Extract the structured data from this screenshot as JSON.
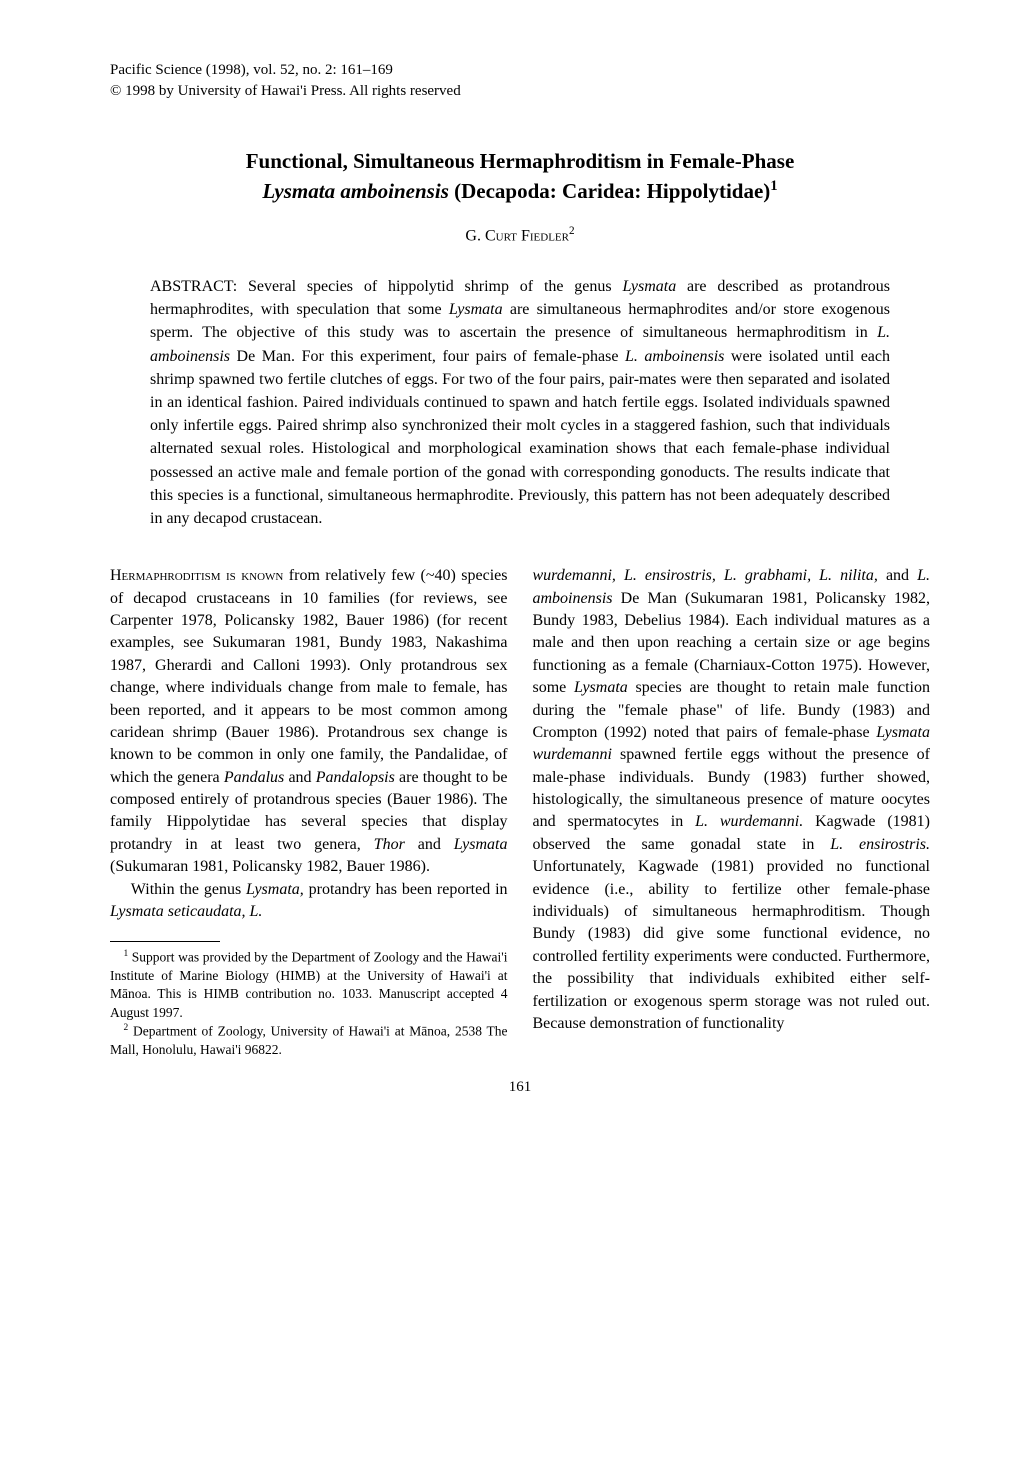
{
  "journal": {
    "line1": "Pacific Science (1998), vol. 52, no. 2: 161–169",
    "line2": "© 1998 by University of Hawai'i Press. All rights reserved"
  },
  "title": {
    "line1": "Functional, Simultaneous Hermaphroditism in Female-Phase",
    "line2_italic": "Lysmata amboinensis",
    "line2_rest": " (Decapoda: Caridea: Hippolytidae)",
    "super": "1"
  },
  "author": {
    "name": "G. Curt Fiedler",
    "super": "2"
  },
  "abstract": {
    "label": "ABSTRACT: ",
    "text_parts": [
      "Several species of hippolytid shrimp of the genus ",
      "Lysmata",
      " are described as protandrous hermaphrodites, with speculation that some ",
      "Lysmata",
      " are simultaneous hermaphrodites and/or store exogenous sperm. The objective of this study was to ascertain the presence of simultaneous hermaphroditism in ",
      "L. amboinensis",
      " De Man. For this experiment, four pairs of female-phase ",
      "L. amboinensis",
      " were isolated until each shrimp spawned two fertile clutches of eggs. For two of the four pairs, pair-mates were then separated and isolated in an identical fashion. Paired individuals continued to spawn and hatch fertile eggs. Isolated individuals spawned only infertile eggs. Paired shrimp also synchronized their molt cycles in a staggered fashion, such that individuals alternated sexual roles. Histological and morphological examination shows that each female-phase individual possessed an active male and female portion of the gonad with corresponding gonoducts. The results indicate that this species is a functional, simultaneous hermaphrodite. Previously, this pattern has not been adequately described in any decapod crustacean."
    ]
  },
  "left_col": {
    "p1_lead": "Hermaphroditism is known",
    "p1_rest": " from relatively few (~40) species of decapod crustaceans in 10 families (for reviews, see Carpenter 1978, Policansky 1982, Bauer 1986) (for recent examples, see Sukumaran 1981, Bundy 1983, Nakashima 1987, Gherardi and Calloni 1993). Only protandrous sex change, where individuals change from male to female, has been reported, and it appears to be most common among caridean shrimp (Bauer 1986). Protandrous sex change is known to be common in only one family, the Pandalidae, of which the genera ",
    "p1_it1": "Pandalus",
    "p1_mid1": " and ",
    "p1_it2": "Pandalopsis",
    "p1_mid2": " are thought to be composed entirely of protandrous species (Bauer 1986). The family Hippolytidae has several species that display protandry in at least two genera, ",
    "p1_it3": "Thor",
    "p1_mid3": " and ",
    "p1_it4": "Lysmata",
    "p1_end": " (Sukumaran 1981, Policansky 1982, Bauer 1986).",
    "p2_a": "Within the genus ",
    "p2_it1": "Lysmata,",
    "p2_b": " protandry has been reported in ",
    "p2_it2": "Lysmata seticaudata, L."
  },
  "right_col": {
    "p1_it1": "wurdemanni, L. ensirostris, L. grabhami, L. nilita,",
    "p1_a": " and ",
    "p1_it2": "L. amboinensis",
    "p1_b": " De Man (Sukumaran 1981, Policansky 1982, Bundy 1983, Debelius 1984). Each individual matures as a male and then upon reaching a certain size or age begins functioning as a female (Charniaux-Cotton 1975). However, some ",
    "p1_it3": "Lysmata",
    "p1_c": " species are thought to retain male function during the \"female phase\" of life. Bundy (1983) and Crompton (1992) noted that pairs of female-phase ",
    "p1_it4": "Lysmata wurdemanni",
    "p1_d": " spawned fertile eggs without the presence of male-phase individuals. Bundy (1983) further showed, histologically, the simultaneous presence of mature oocytes and spermatocytes in ",
    "p1_it5": "L. wurdemanni.",
    "p1_e": " Kagwade (1981) observed the same gonadal state in ",
    "p1_it6": "L. ensirostris.",
    "p1_f": " Unfortunately, Kagwade (1981) provided no functional evidence (i.e., ability to fertilize other female-phase individuals) of simultaneous hermaphroditism. Though Bundy (1983) did give some functional evidence, no controlled fertility experiments were conducted. Furthermore, the possibility that individuals exhibited either self-fertilization or exogenous sperm storage was not ruled out. Because demonstration of functionality"
  },
  "footnotes": {
    "f1_sup": "1",
    "f1": " Support was provided by the Department of Zoology and the Hawai'i Institute of Marine Biology (HIMB) at the University of Hawai'i at Mānoa. This is HIMB contribution no. 1033. Manuscript accepted 4 August 1997.",
    "f2_sup": "2",
    "f2": " Department of Zoology, University of Hawai'i at Mānoa, 2538 The Mall, Honolulu, Hawai'i 96822."
  },
  "page_number": "161"
}
